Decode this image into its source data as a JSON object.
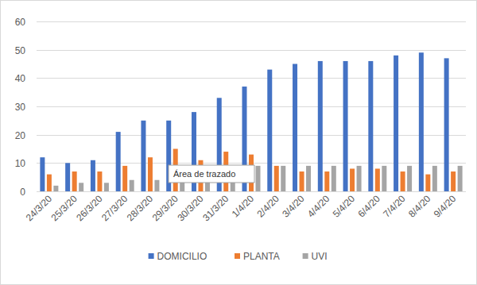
{
  "chart_data": {
    "type": "bar",
    "categories": [
      "24/3/20",
      "25/3/20",
      "26/3/20",
      "27/3/20",
      "28/3/20",
      "29/3/20",
      "30/3/20",
      "31/3/20",
      "1/4/20",
      "2/4/20",
      "3/4/20",
      "4/4/20",
      "5/4/20",
      "6/4/20",
      "7/4/20",
      "8/4/20",
      "9/4/20"
    ],
    "series": [
      {
        "name": "DOMICILIO",
        "color": "#4472c4",
        "values": [
          12,
          10,
          11,
          21,
          25,
          25,
          28,
          33,
          37,
          43,
          45,
          46,
          46,
          46,
          48,
          49,
          47
        ]
      },
      {
        "name": "PLANTA",
        "color": "#ed7d31",
        "values": [
          6,
          7,
          7,
          9,
          12,
          15,
          11,
          14,
          13,
          9,
          7,
          7,
          8,
          8,
          7,
          6,
          7
        ]
      },
      {
        "name": "UVI",
        "color": "#a5a5a5",
        "values": [
          2,
          3,
          3,
          4,
          4,
          5,
          6,
          8,
          9,
          9,
          9,
          9,
          9,
          9,
          9,
          9,
          9
        ]
      }
    ],
    "ylim": [
      0,
      60
    ],
    "yticks": [
      0,
      10,
      20,
      30,
      40,
      50,
      60
    ],
    "grid": true,
    "legend": "bottom",
    "annotations": [
      "Área de trazado"
    ]
  }
}
